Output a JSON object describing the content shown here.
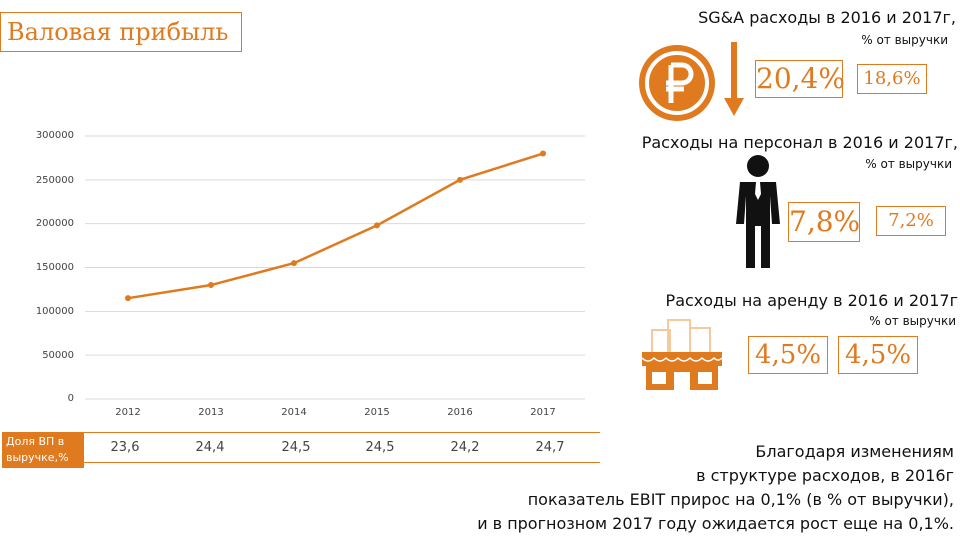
{
  "title": "Валовая прибыль",
  "sga": {
    "heading": "SG&A расходы в 2016 и 2017г,",
    "subheading": "% от выручки",
    "value_2016": "20,4%",
    "value_2017": "18,6%"
  },
  "personnel": {
    "heading": "Расходы на персонал в 2016 и 2017г,",
    "subheading": "% от выручки",
    "value_2016": "7,8%",
    "value_2017": "7,2%"
  },
  "rent": {
    "heading": "Расходы на аренду в 2016 и 2017г",
    "subheading": "% от выручки",
    "value_2016": "4,5%",
    "value_2017": "4,5%"
  },
  "share_row": {
    "label": "Доля ВП в выручке,%",
    "values": [
      "23,6",
      "24,4",
      "24,5",
      "24,5",
      "24,2",
      "24,7"
    ]
  },
  "summary": [
    "Благодаря изменениям",
    "в структуре расходов, в 2016г",
    "показатель EBIT прирос на 0,1% (в % от выручки),",
    "и в прогнозном 2017 году ожидается рост еще на 0,1%."
  ],
  "colors": {
    "accent": "#E07A1F",
    "grid": "#D9D9D9"
  },
  "icons": {
    "sga": "ruble-coin-icon",
    "sga_arrow": "down-arrow-icon",
    "personnel": "person-icon",
    "rent": "storefront-icon"
  },
  "chart_data": {
    "type": "line",
    "title": "Валовая прибыль",
    "categories": [
      "2012",
      "2013",
      "2014",
      "2015",
      "2016",
      "2017"
    ],
    "values": [
      115000,
      130000,
      155000,
      198000,
      250000,
      280000
    ],
    "ylim": [
      0,
      300000
    ],
    "yticks": [
      "0",
      "50000",
      "100000",
      "150000",
      "200000",
      "250000",
      "300000"
    ],
    "grid": true,
    "line_color": "#E07A1F"
  }
}
